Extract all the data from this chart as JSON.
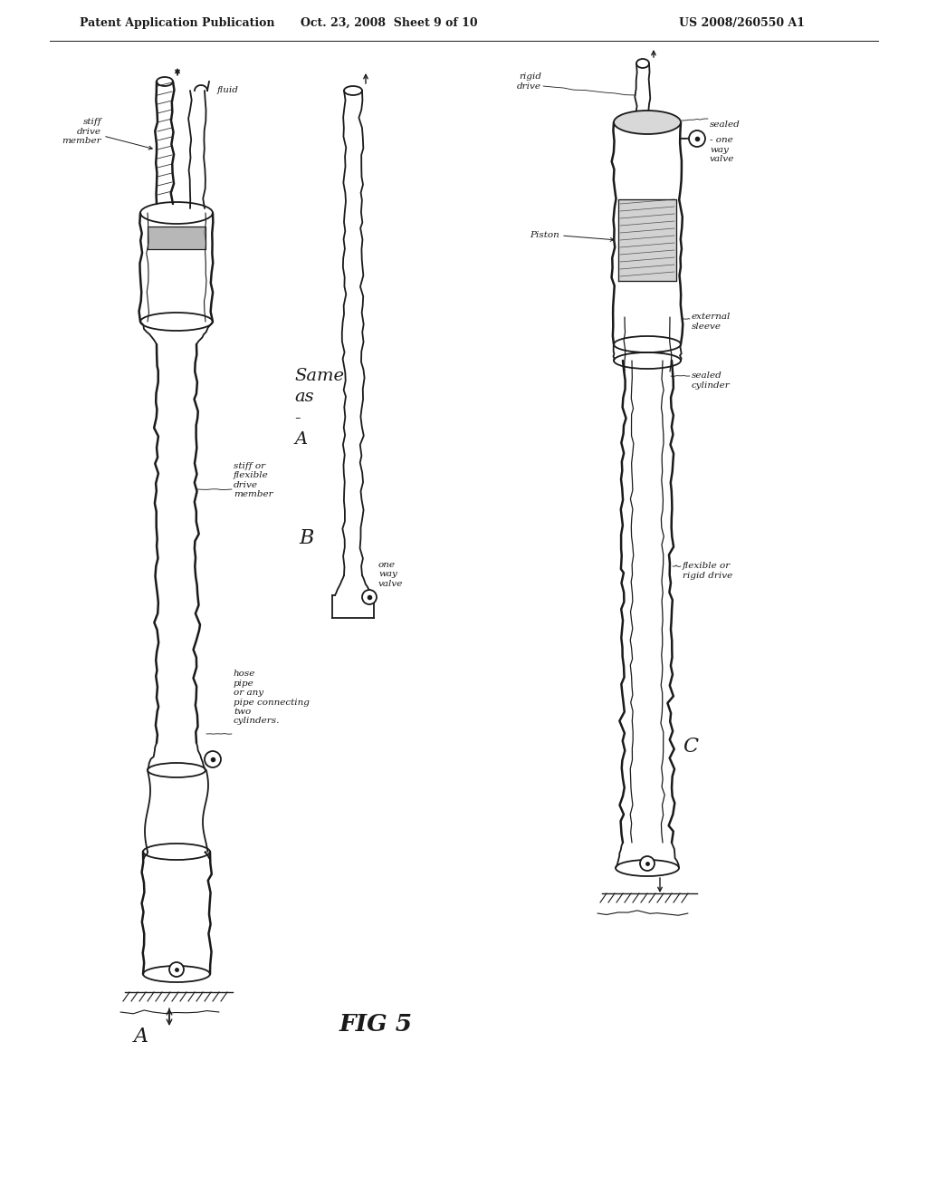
{
  "title_left": "Patent Application Publication",
  "title_center": "Oct. 23, 2008  Sheet 9 of 10",
  "title_right": "US 2008/260550 A1",
  "fig_label": "FIG 5",
  "background_color": "#ffffff",
  "ink_color": "#1a1a1a",
  "diagram_A_label": "A",
  "diagram_B_label": "B",
  "diagram_C_label": "C",
  "header_fontsize": 9,
  "annotation_fontsize": 7.5,
  "label_fontsize": 16
}
